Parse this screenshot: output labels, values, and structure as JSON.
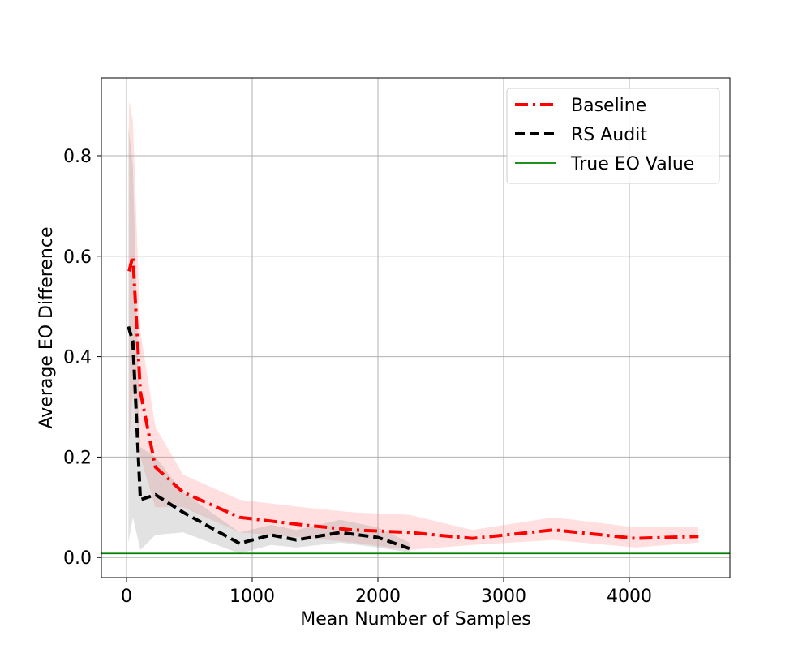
{
  "chart_data": {
    "type": "line",
    "xlabel": "Mean Number of Samples",
    "ylabel": "Average EO Difference",
    "xlim": [
      -200,
      4800
    ],
    "ylim": [
      -0.04,
      0.955
    ],
    "xticks": [
      0,
      1000,
      2000,
      3000,
      4000
    ],
    "xtick_labels": [
      "0",
      "1000",
      "2000",
      "3000",
      "4000"
    ],
    "yticks": [
      0.0,
      0.2,
      0.4,
      0.6,
      0.8
    ],
    "ytick_labels": [
      "0.0",
      "0.2",
      "0.4",
      "0.6",
      "0.8"
    ],
    "grid": true,
    "legend_position": "top-right",
    "series": [
      {
        "name": "Baseline",
        "color": "#ff0000",
        "style": "dashdot",
        "x": [
          20,
          50,
          110,
          230,
          450,
          900,
          1400,
          1800,
          2250,
          2750,
          3400,
          4050,
          4550
        ],
        "y": [
          0.57,
          0.6,
          0.33,
          0.18,
          0.13,
          0.08,
          0.065,
          0.055,
          0.05,
          0.038,
          0.055,
          0.038,
          0.042
        ],
        "lower": [
          0.23,
          0.33,
          0.2,
          0.1,
          0.1,
          0.05,
          0.04,
          0.03,
          0.015,
          0.025,
          0.035,
          0.02,
          0.03
        ],
        "upper": [
          0.91,
          0.87,
          0.45,
          0.26,
          0.165,
          0.115,
          0.1,
          0.09,
          0.085,
          0.055,
          0.08,
          0.06,
          0.06
        ]
      },
      {
        "name": "RS Audit",
        "color": "#000000",
        "style": "dashed",
        "x": [
          15,
          50,
          110,
          230,
          450,
          900,
          1150,
          1350,
          1700,
          2000,
          2250
        ],
        "y": [
          0.46,
          0.43,
          0.115,
          0.125,
          0.09,
          0.028,
          0.045,
          0.035,
          0.05,
          0.04,
          0.018
        ],
        "lower": [
          0.03,
          0.08,
          0.015,
          0.045,
          0.05,
          0.008,
          0.025,
          0.02,
          0.03,
          0.02,
          0.01
        ],
        "upper": [
          0.86,
          0.78,
          0.22,
          0.2,
          0.13,
          0.05,
          0.065,
          0.055,
          0.075,
          0.06,
          0.03
        ]
      },
      {
        "name": "True EO Value",
        "color": "#008000",
        "style": "solid",
        "hline": 0.008
      }
    ]
  }
}
